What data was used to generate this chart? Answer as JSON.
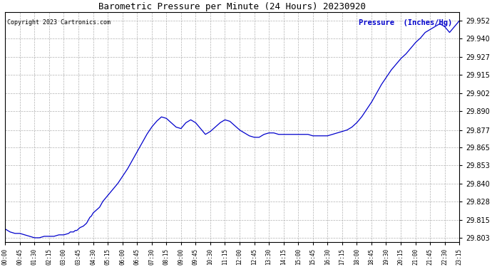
{
  "title": "Barometric Pressure per Minute (24 Hours) 20230920",
  "copyright": "Copyright 2023 Cartronics.com",
  "legend_label": "Pressure  (Inches/Hg)",
  "line_color": "#0000cc",
  "background_color": "#ffffff",
  "grid_color": "#aaaaaa",
  "title_color": "#000000",
  "copyright_color": "#000000",
  "legend_color": "#0000cc",
  "yticks": [
    29.803,
    29.815,
    29.828,
    29.84,
    29.853,
    29.865,
    29.877,
    29.89,
    29.902,
    29.915,
    29.927,
    29.94,
    29.952
  ],
  "ymin": 29.8,
  "ymax": 29.958,
  "xtick_labels": [
    "00:00",
    "00:45",
    "01:30",
    "02:15",
    "03:00",
    "03:45",
    "04:30",
    "05:15",
    "06:00",
    "06:45",
    "07:30",
    "08:15",
    "09:00",
    "09:45",
    "10:30",
    "11:15",
    "12:00",
    "12:45",
    "13:30",
    "14:15",
    "15:00",
    "15:45",
    "16:30",
    "17:15",
    "18:00",
    "18:45",
    "19:30",
    "20:15",
    "21:00",
    "21:45",
    "22:30",
    "23:15"
  ],
  "keypoints": [
    [
      0,
      29.809
    ],
    [
      15,
      29.807
    ],
    [
      30,
      29.806
    ],
    [
      45,
      29.806
    ],
    [
      60,
      29.805
    ],
    [
      75,
      29.804
    ],
    [
      90,
      29.803
    ],
    [
      105,
      29.803
    ],
    [
      120,
      29.804
    ],
    [
      135,
      29.804
    ],
    [
      150,
      29.804
    ],
    [
      165,
      29.805
    ],
    [
      180,
      29.805
    ],
    [
      195,
      29.806
    ],
    [
      200,
      29.807
    ],
    [
      210,
      29.807
    ],
    [
      215,
      29.808
    ],
    [
      220,
      29.808
    ],
    [
      225,
      29.809
    ],
    [
      230,
      29.81
    ],
    [
      240,
      29.811
    ],
    [
      250,
      29.813
    ],
    [
      255,
      29.815
    ],
    [
      260,
      29.817
    ],
    [
      265,
      29.818
    ],
    [
      270,
      29.82
    ],
    [
      280,
      29.822
    ],
    [
      290,
      29.824
    ],
    [
      300,
      29.828
    ],
    [
      315,
      29.832
    ],
    [
      330,
      29.836
    ],
    [
      345,
      29.84
    ],
    [
      360,
      29.845
    ],
    [
      375,
      29.85
    ],
    [
      390,
      29.856
    ],
    [
      405,
      29.862
    ],
    [
      420,
      29.868
    ],
    [
      435,
      29.874
    ],
    [
      450,
      29.879
    ],
    [
      465,
      29.883
    ],
    [
      480,
      29.886
    ],
    [
      495,
      29.885
    ],
    [
      510,
      29.882
    ],
    [
      525,
      29.879
    ],
    [
      540,
      29.878
    ],
    [
      555,
      29.882
    ],
    [
      570,
      29.884
    ],
    [
      585,
      29.882
    ],
    [
      600,
      29.878
    ],
    [
      615,
      29.874
    ],
    [
      630,
      29.876
    ],
    [
      645,
      29.879
    ],
    [
      660,
      29.882
    ],
    [
      675,
      29.884
    ],
    [
      690,
      29.883
    ],
    [
      705,
      29.88
    ],
    [
      720,
      29.877
    ],
    [
      735,
      29.875
    ],
    [
      750,
      29.873
    ],
    [
      765,
      29.872
    ],
    [
      780,
      29.872
    ],
    [
      795,
      29.874
    ],
    [
      810,
      29.875
    ],
    [
      825,
      29.875
    ],
    [
      840,
      29.874
    ],
    [
      855,
      29.874
    ],
    [
      870,
      29.874
    ],
    [
      885,
      29.874
    ],
    [
      900,
      29.874
    ],
    [
      915,
      29.874
    ],
    [
      930,
      29.874
    ],
    [
      945,
      29.873
    ],
    [
      960,
      29.873
    ],
    [
      975,
      29.873
    ],
    [
      990,
      29.873
    ],
    [
      1005,
      29.874
    ],
    [
      1020,
      29.875
    ],
    [
      1035,
      29.876
    ],
    [
      1050,
      29.877
    ],
    [
      1065,
      29.879
    ],
    [
      1080,
      29.882
    ],
    [
      1095,
      29.886
    ],
    [
      1110,
      29.891
    ],
    [
      1125,
      29.896
    ],
    [
      1140,
      29.902
    ],
    [
      1155,
      29.908
    ],
    [
      1170,
      29.913
    ],
    [
      1185,
      29.918
    ],
    [
      1200,
      29.922
    ],
    [
      1215,
      29.926
    ],
    [
      1230,
      29.929
    ],
    [
      1245,
      29.933
    ],
    [
      1260,
      29.937
    ],
    [
      1275,
      29.94
    ],
    [
      1290,
      29.944
    ],
    [
      1305,
      29.946
    ],
    [
      1320,
      29.948
    ],
    [
      1335,
      29.95
    ],
    [
      1350,
      29.948
    ],
    [
      1365,
      29.944
    ],
    [
      1380,
      29.948
    ],
    [
      1395,
      29.952
    ]
  ]
}
